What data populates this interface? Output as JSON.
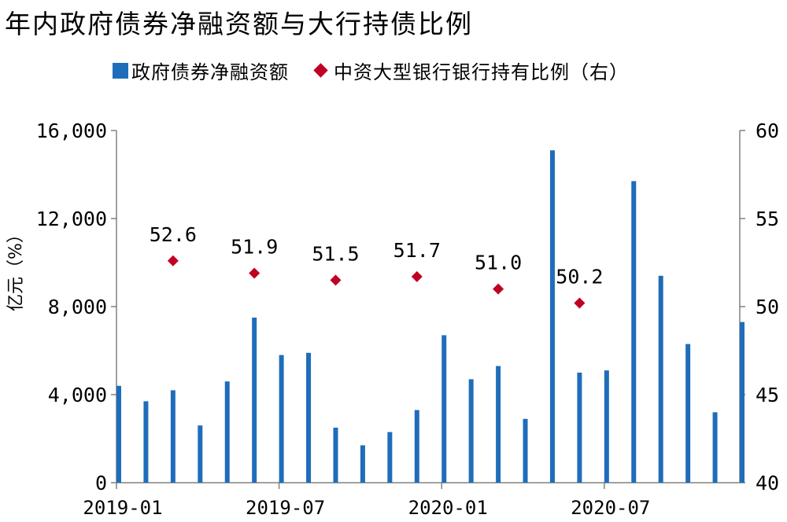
{
  "title": "年内政府债券净融资额与大行持债比例",
  "legend": {
    "bar_label": "政府债券净融资额",
    "diamond_label": "中资大型银行银行持有比例（右）"
  },
  "colors": {
    "bar": "#1F6DBA",
    "diamond": "#C00023"
  },
  "chart_data": {
    "type": "bar",
    "title": "年内政府债券净融资额与大行持债比例",
    "ylabel": "亿元（%）",
    "ylim": [
      0,
      16000
    ],
    "y2lim": [
      40,
      60
    ],
    "yticks": [
      "0",
      "4,000",
      "8,000",
      "12,000",
      "16,000"
    ],
    "y2ticks": [
      "40",
      "45",
      "50",
      "55",
      "60"
    ],
    "xtick_labels": [
      "2019-01",
      "2019-07",
      "2020-01",
      "2020-07"
    ],
    "categories": [
      "2019-01",
      "2019-02",
      "2019-03",
      "2019-04",
      "2019-05",
      "2019-06",
      "2019-07",
      "2019-08",
      "2019-09",
      "2019-10",
      "2019-11",
      "2019-12",
      "2020-01",
      "2020-02",
      "2020-03",
      "2020-04",
      "2020-05",
      "2020-06",
      "2020-07",
      "2020-08",
      "2020-09",
      "2020-10",
      "2020-11",
      "2020-12"
    ],
    "series": [
      {
        "name": "政府债券净融资额",
        "kind": "bar",
        "axis": "left",
        "values": [
          4400,
          3700,
          4200,
          2600,
          4600,
          7500,
          5800,
          5900,
          2500,
          1700,
          2300,
          3300,
          6700,
          4700,
          5300,
          2900,
          15100,
          5000,
          5100,
          13700,
          9400,
          6300,
          3200,
          7300
        ]
      },
      {
        "name": "中资大型银行银行持有比例（右）",
        "kind": "diamond",
        "axis": "right",
        "points": [
          {
            "x": "2019-03",
            "y": 52.6
          },
          {
            "x": "2019-06",
            "y": 51.9
          },
          {
            "x": "2019-09",
            "y": 51.5
          },
          {
            "x": "2019-12",
            "y": 51.7
          },
          {
            "x": "2020-03",
            "y": 51.0
          },
          {
            "x": "2020-06",
            "y": 50.2
          }
        ],
        "labels": [
          "52.6",
          "51.9",
          "51.5",
          "51.7",
          "51.0",
          "50.2"
        ]
      }
    ]
  }
}
